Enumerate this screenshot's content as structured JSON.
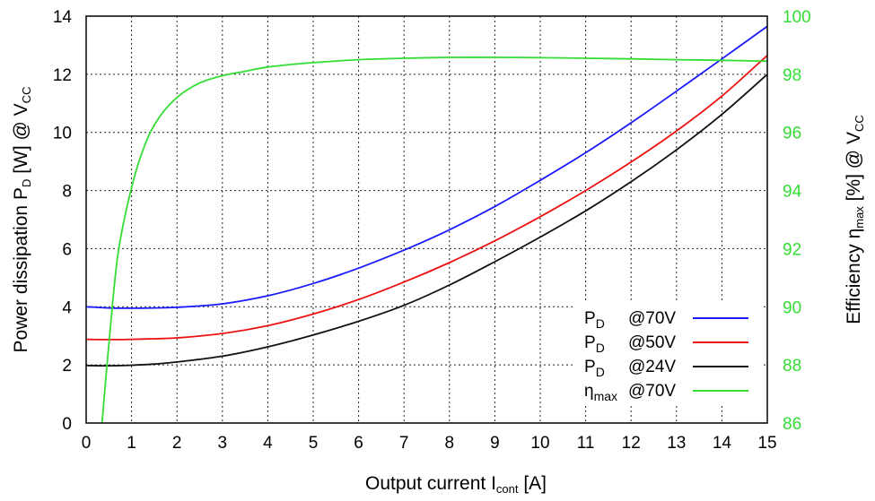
{
  "chart_data": {
    "type": "line",
    "xlabel": {
      "main": "Output current I",
      "sub": "cont",
      "tail": " [A]"
    },
    "ylabel_left": {
      "a": "Power dissipation P",
      "a_sub": "D",
      "b": " [W] @ V",
      "b_sub": "CC"
    },
    "ylabel_right": {
      "a": "Efficiency η",
      "a_sub": "max",
      "b": " [%] @ V",
      "b_sub": "CC"
    },
    "xlim": [
      0,
      15
    ],
    "ylim_left": [
      0,
      14
    ],
    "ylim_right": [
      86,
      100
    ],
    "x_ticks": [
      "0",
      "1",
      "2",
      "3",
      "4",
      "5",
      "6",
      "7",
      "8",
      "9",
      "10",
      "11",
      "12",
      "13",
      "14",
      "15"
    ],
    "y_left_ticks": [
      "0",
      "2",
      "4",
      "6",
      "8",
      "10",
      "12",
      "14"
    ],
    "y_right_ticks": [
      "86",
      "88",
      "90",
      "92",
      "94",
      "96",
      "98",
      "100"
    ],
    "grid": true,
    "legend_position": "lower-right",
    "colors": {
      "right_axis": "#33dd33"
    },
    "series": [
      {
        "legend_main": "P",
        "legend_sub": "D",
        "legend_tail": "@70V",
        "axis": "left",
        "color": "#1a1aff",
        "x": [
          0,
          0.5,
          1,
          1.5,
          2,
          3,
          4,
          5,
          6,
          7,
          8,
          9,
          10,
          11,
          12,
          13,
          14,
          15
        ],
        "y": [
          4.0,
          3.96,
          3.95,
          3.96,
          3.98,
          4.1,
          4.38,
          4.8,
          5.33,
          5.95,
          6.65,
          7.45,
          8.35,
          9.3,
          10.33,
          11.42,
          12.53,
          13.65
        ]
      },
      {
        "legend_main": "P",
        "legend_sub": "D",
        "legend_tail": "@50V",
        "axis": "left",
        "color": "#ee1111",
        "x": [
          0,
          0.5,
          1,
          1.5,
          2,
          3,
          4,
          5,
          6,
          7,
          8,
          9,
          10,
          11,
          12,
          13,
          14,
          15
        ],
        "y": [
          2.88,
          2.87,
          2.88,
          2.9,
          2.93,
          3.08,
          3.35,
          3.75,
          4.25,
          4.85,
          5.52,
          6.27,
          7.1,
          8.0,
          8.98,
          10.05,
          11.25,
          12.65
        ]
      },
      {
        "legend_main": "P",
        "legend_sub": "D",
        "legend_tail": "@24V",
        "axis": "left",
        "color": "#111111",
        "x": [
          0,
          0.5,
          1,
          1.5,
          2,
          3,
          4,
          5,
          6,
          7,
          8,
          9,
          10,
          11,
          12,
          13,
          14,
          15
        ],
        "y": [
          1.98,
          1.97,
          1.99,
          2.03,
          2.1,
          2.3,
          2.62,
          3.03,
          3.5,
          4.05,
          4.75,
          5.55,
          6.4,
          7.3,
          8.3,
          9.4,
          10.62,
          12.0
        ]
      },
      {
        "legend_main": "η",
        "legend_sub": "max",
        "legend_tail": "@70V",
        "axis": "right",
        "color": "#33dd33",
        "x": [
          0.35,
          0.5,
          0.7,
          1,
          1.3,
          1.6,
          2,
          2.5,
          3,
          3.5,
          4,
          5,
          6,
          7,
          8,
          9,
          10,
          11,
          12,
          13,
          14,
          15
        ],
        "y": [
          86.0,
          88.7,
          91.8,
          94.1,
          95.6,
          96.5,
          97.2,
          97.7,
          97.95,
          98.1,
          98.25,
          98.4,
          98.5,
          98.55,
          98.58,
          98.58,
          98.57,
          98.55,
          98.53,
          98.5,
          98.48,
          98.45
        ]
      }
    ]
  }
}
